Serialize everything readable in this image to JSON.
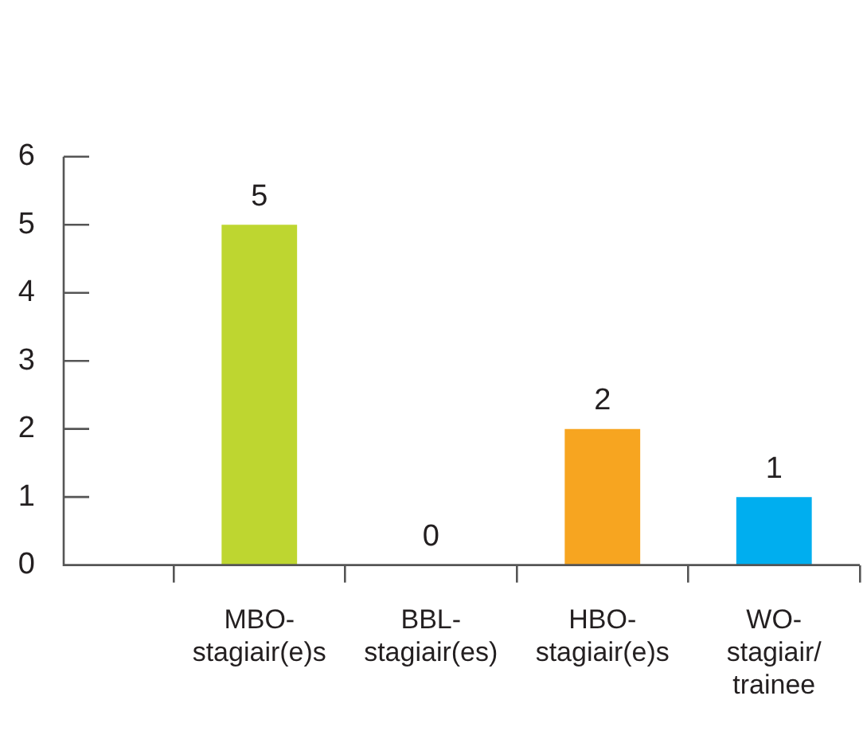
{
  "chart_data": {
    "type": "bar",
    "categories": [
      "MBO-stagiair(e)s",
      "BBL-stagiair(es)",
      "HBO-stagiair(e)s",
      "WO-stagiair/trainee"
    ],
    "values": [
      5,
      0,
      2,
      1
    ],
    "colors": [
      "#bed630",
      "#bed630",
      "#f7a520",
      "#00aeef"
    ],
    "ylim": [
      0,
      6
    ],
    "yticks": [
      0,
      1,
      2,
      3,
      4,
      5,
      6
    ],
    "data_labels": true,
    "grid": false,
    "legend": false
  }
}
